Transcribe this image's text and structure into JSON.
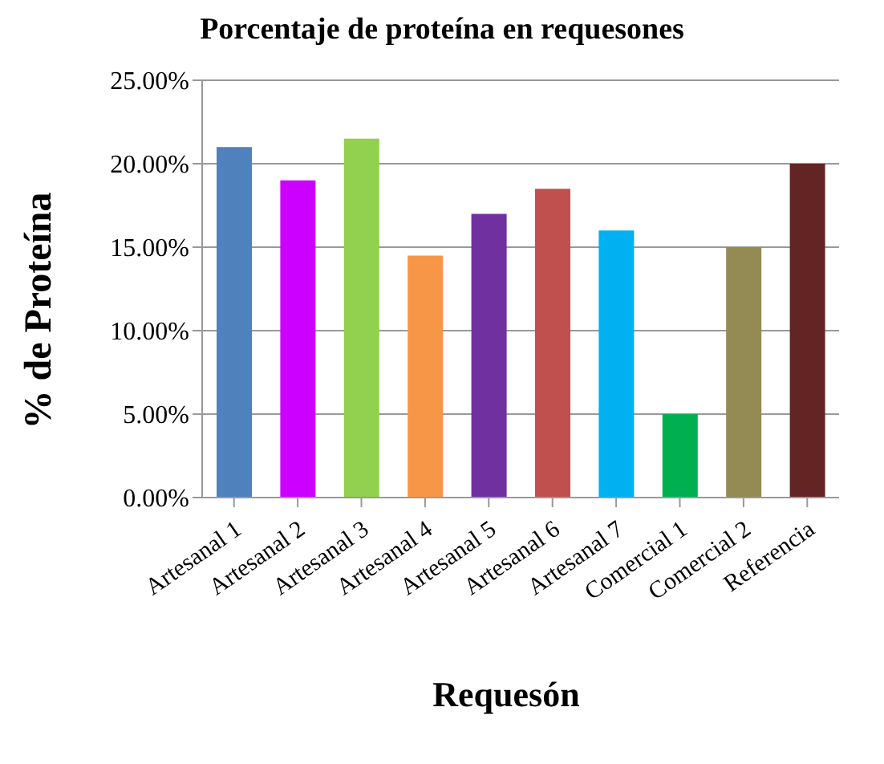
{
  "chart_data": {
    "type": "bar",
    "title": "Porcentaje de proteína en requesones",
    "xlabel": "Requesón",
    "ylabel": "% de Proteína",
    "categories": [
      "Artesanal 1",
      "Artesanal 2",
      "Artesanal 3",
      "Artesanal 4",
      "Artesanal 5",
      "Artesanal 6",
      "Artesanal 7",
      "Comercial 1",
      "Comercial 2",
      "Referencia"
    ],
    "values": [
      21,
      19,
      21.5,
      14.5,
      17,
      18.5,
      16,
      5,
      15,
      20
    ],
    "colors": [
      "#4f81bd",
      "#cc00ff",
      "#92d050",
      "#f79646",
      "#7030a0",
      "#c0504d",
      "#00b0f0",
      "#00b050",
      "#948a54",
      "#632523"
    ],
    "ylim": [
      0,
      25
    ],
    "yticks": [
      {
        "value": 0,
        "label": "0.00%"
      },
      {
        "value": 5,
        "label": "5.00%"
      },
      {
        "value": 10,
        "label": "10.00%"
      },
      {
        "value": 15,
        "label": "15.00%"
      },
      {
        "value": 20,
        "label": "20.00%"
      },
      {
        "value": 25,
        "label": "25.00%"
      }
    ],
    "grid": "y",
    "legend": false
  }
}
